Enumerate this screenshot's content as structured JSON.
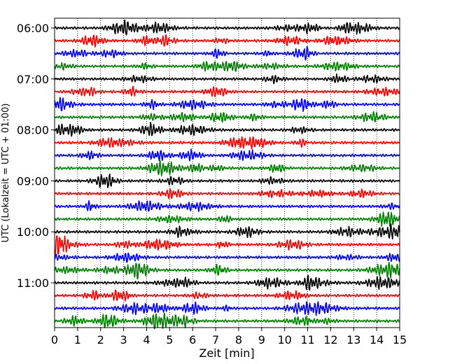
{
  "chart_data": {
    "type": "line",
    "title": "",
    "xlabel": "Zeit  [min]",
    "ylabel": "UTC (Lokalzeit = UTC + 01:00)",
    "xlim": [
      0,
      15
    ],
    "xticks": [
      0,
      1,
      2,
      3,
      4,
      5,
      6,
      7,
      8,
      9,
      10,
      11,
      12,
      13,
      14,
      15
    ],
    "x_gridlines": "dotted",
    "y_tick_labels": [
      "06:00",
      "07:00",
      "08:00",
      "09:00",
      "10:00",
      "11:00"
    ],
    "trace_interval_minutes": 15,
    "trace_count": 24,
    "first_trace_start": "06:00",
    "trace_color_cycle": [
      "#000000",
      "#ff0000",
      "#0000ff",
      "#008000"
    ],
    "legend": "none"
  }
}
